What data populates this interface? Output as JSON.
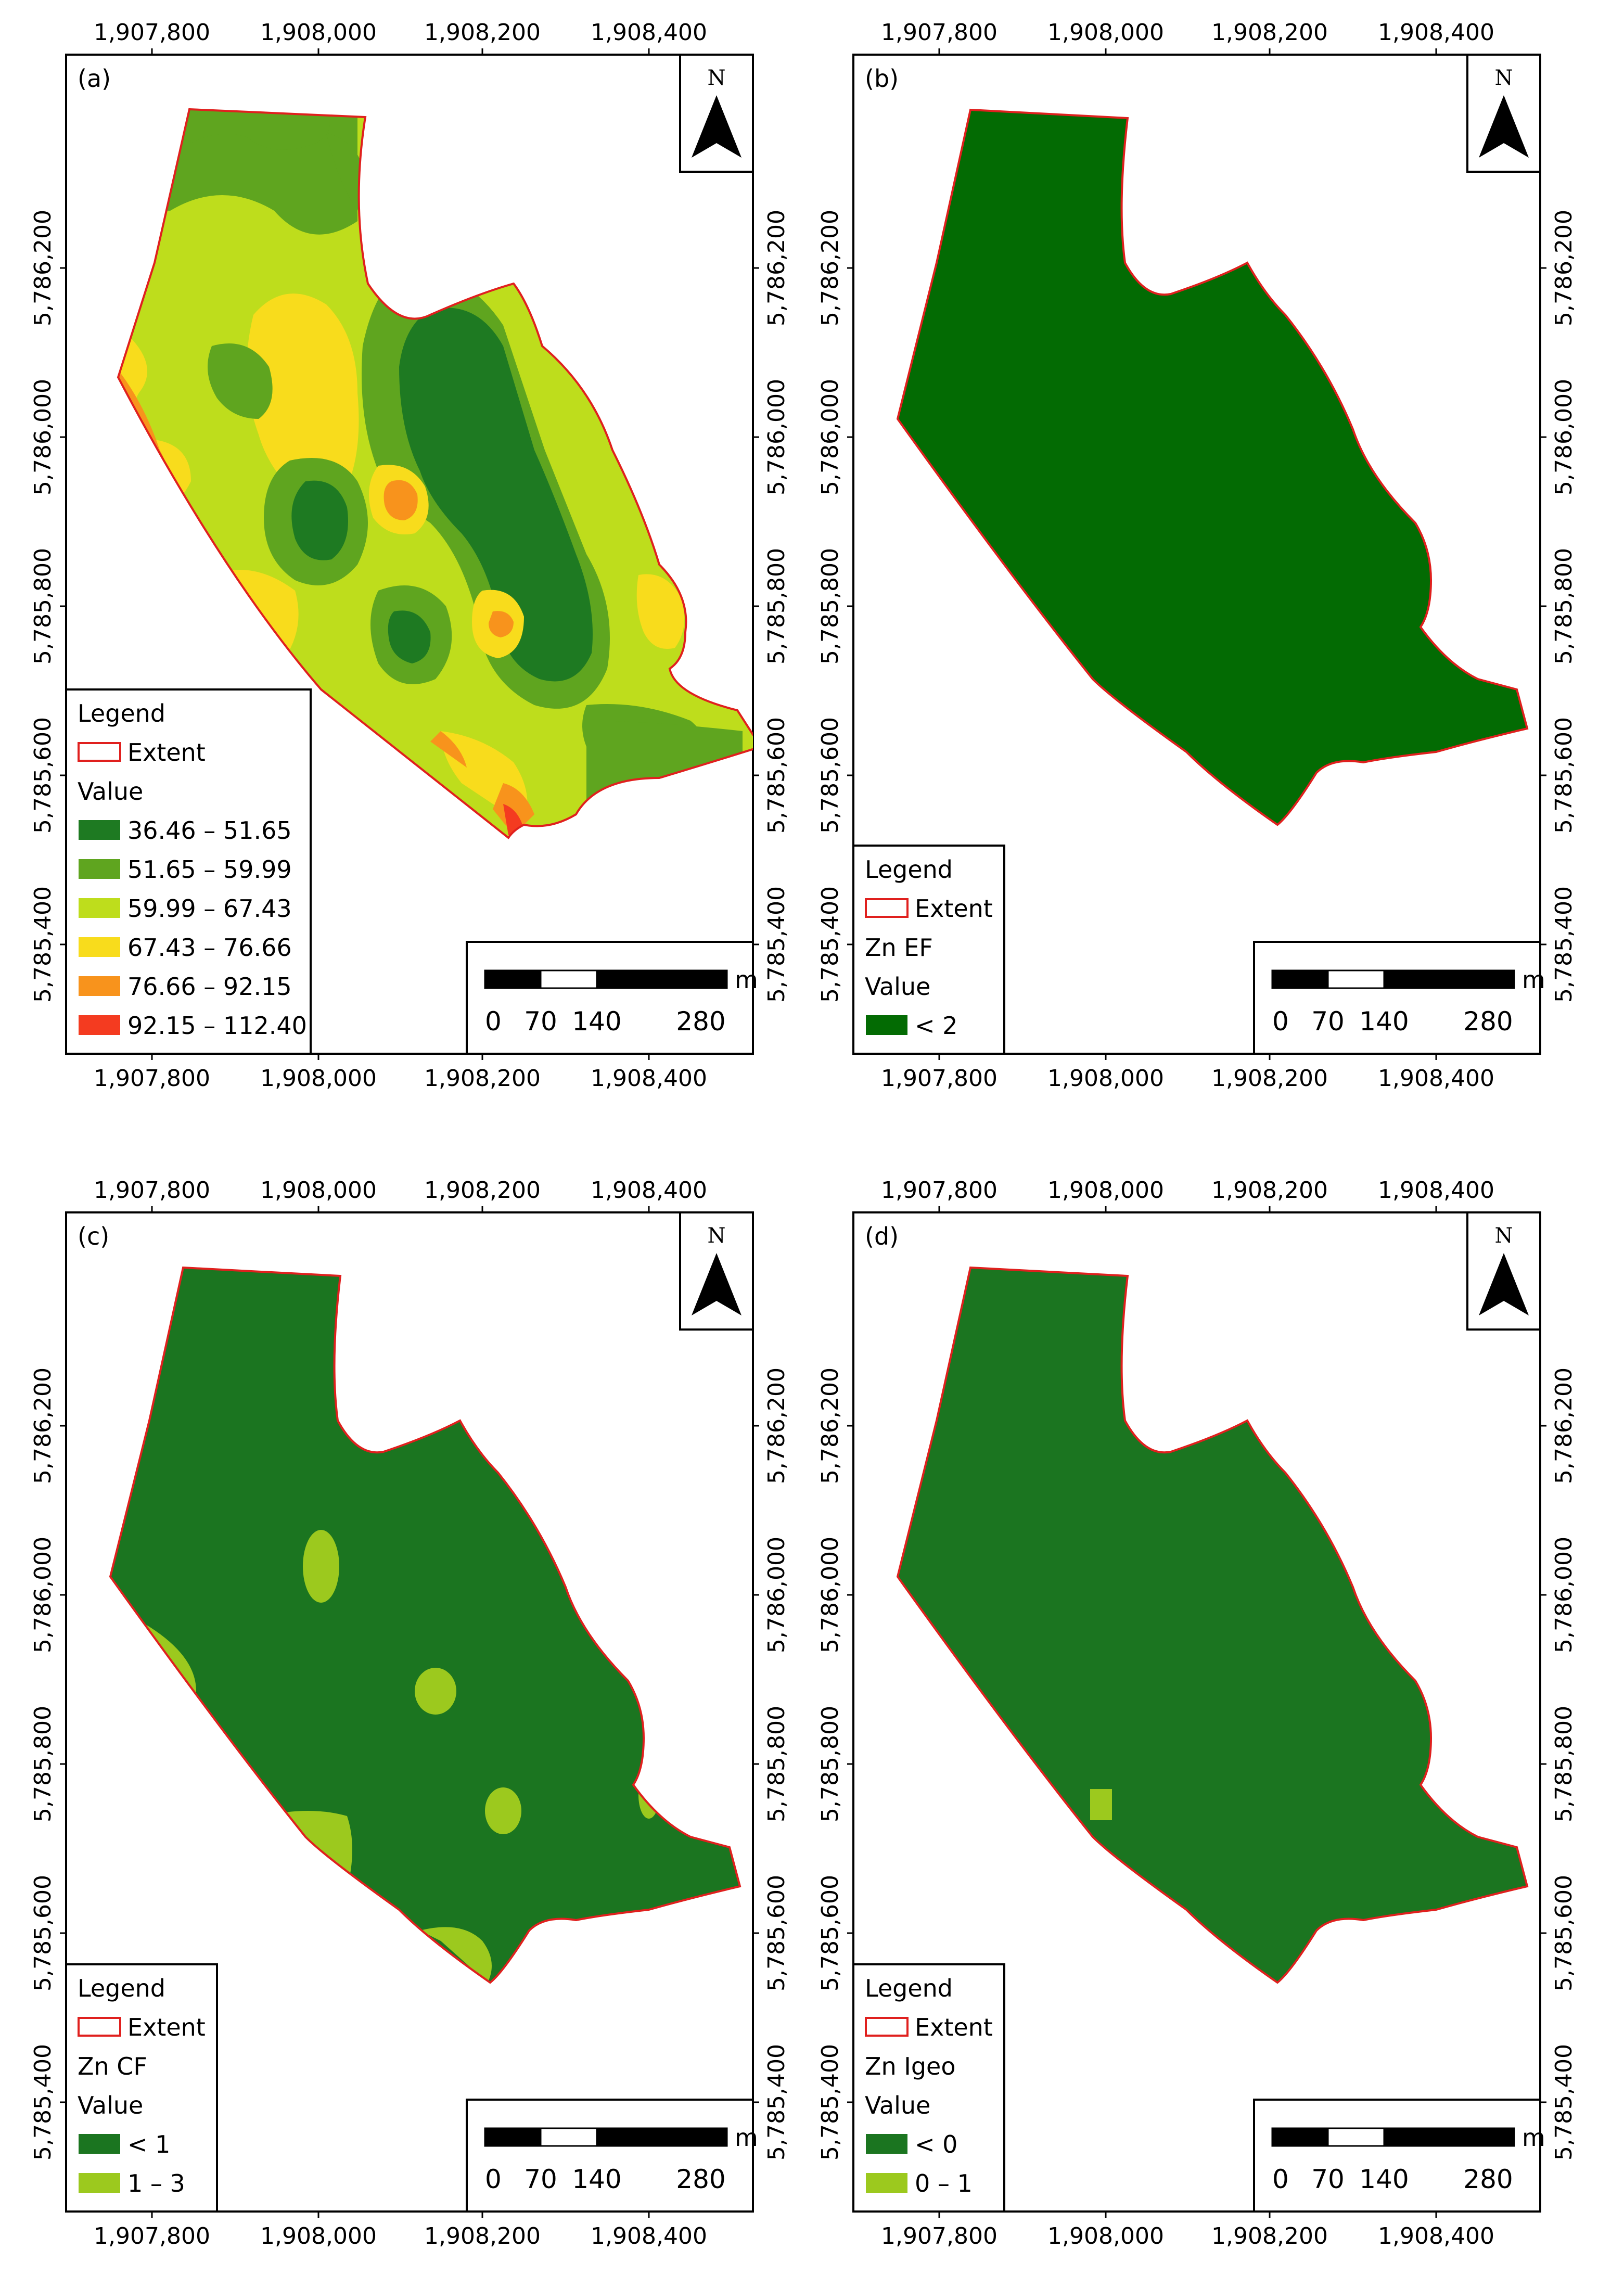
{
  "x_ticks": [
    "1,907,800",
    "1,908,000",
    "1,908,200",
    "1,908,400"
  ],
  "y_ticks": [
    "5,786,200",
    "5,786,000",
    "5,785,800",
    "5,785,600",
    "5,785,400"
  ],
  "north_label": "N",
  "scale_bar": {
    "unit": "m",
    "labels": [
      "0",
      "70",
      "140",
      "280"
    ]
  },
  "colors": {
    "extent_outline": "#e0201e",
    "frame": "#000000",
    "a_classes": [
      "#1e7a22",
      "#5fa51f",
      "#bedd1c",
      "#f8dc1c",
      "#f8931c",
      "#f43b20"
    ],
    "dark_green": "#1b7520",
    "ef_green": "#036b03",
    "light_green": "#9cc91e"
  },
  "panels": [
    {
      "tag": "(a)",
      "legend": {
        "title": "Legend",
        "extent_label": "Extent",
        "layer_name": "",
        "value_label": "Value",
        "classes": [
          "36.46 – 51.65",
          "51.65 – 59.99",
          "59.99 – 67.43",
          "67.43 – 76.66",
          "76.66 – 92.15",
          "92.15 – 112.40"
        ]
      }
    },
    {
      "tag": "(b)",
      "legend": {
        "title": "Legend",
        "extent_label": "Extent",
        "layer_name": "Zn EF",
        "value_label": "Value",
        "classes": [
          "< 2"
        ]
      }
    },
    {
      "tag": "(c)",
      "legend": {
        "title": "Legend",
        "extent_label": "Extent",
        "layer_name": "Zn CF",
        "value_label": "Value",
        "classes": [
          "< 1",
          "1 – 3"
        ]
      }
    },
    {
      "tag": "(d)",
      "legend": {
        "title": "Legend",
        "extent_label": "Extent",
        "layer_name": "Zn Igeo",
        "value_label": "Value",
        "classes": [
          "< 0",
          "0 – 1"
        ]
      }
    }
  ]
}
